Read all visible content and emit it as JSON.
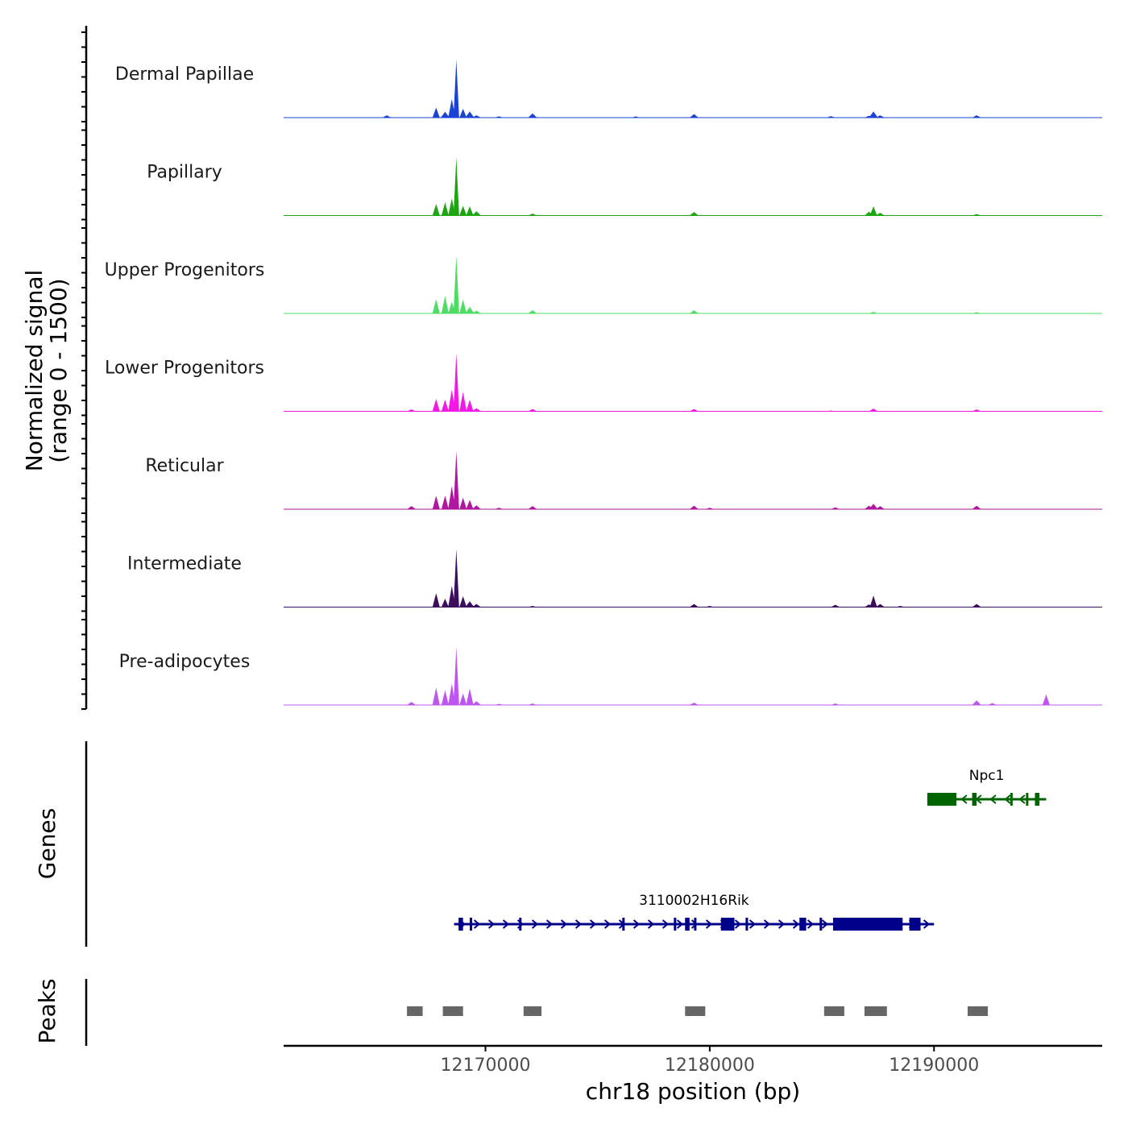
{
  "chart_data": {
    "type": "area",
    "title": "",
    "ylabel": "Normalized signal",
    "ylabel_range": "(range 0 - 1500)",
    "ylim": [
      0,
      1500
    ],
    "xlabel": "chr18 position (bp)",
    "xlim": [
      12161000,
      12197500
    ],
    "xticks": [
      12170000,
      12180000,
      12190000
    ],
    "xtick_labels": [
      "12170000",
      "12180000",
      "12190000"
    ],
    "tracks": [
      {
        "name": "Dermal Papillae",
        "color": "#1A43D6",
        "peaks": [
          [
            12165600,
            60
          ],
          [
            12167800,
            260
          ],
          [
            12168200,
            150
          ],
          [
            12168500,
            480
          ],
          [
            12168700,
            1500
          ],
          [
            12169000,
            230
          ],
          [
            12169300,
            160
          ],
          [
            12169600,
            60
          ],
          [
            12170600,
            35
          ],
          [
            12172100,
            110
          ],
          [
            12176700,
            30
          ],
          [
            12179300,
            90
          ],
          [
            12185400,
            40
          ],
          [
            12187100,
            50
          ],
          [
            12187300,
            160
          ],
          [
            12187600,
            60
          ],
          [
            12191900,
            60
          ]
        ]
      },
      {
        "name": "Papillary",
        "color": "#1FA512",
        "peaks": [
          [
            12167800,
            300
          ],
          [
            12168200,
            340
          ],
          [
            12168500,
            440
          ],
          [
            12168700,
            1500
          ],
          [
            12169000,
            250
          ],
          [
            12169300,
            240
          ],
          [
            12169600,
            110
          ],
          [
            12172100,
            50
          ],
          [
            12179300,
            90
          ],
          [
            12187100,
            100
          ],
          [
            12187300,
            240
          ],
          [
            12187600,
            70
          ],
          [
            12191900,
            40
          ]
        ]
      },
      {
        "name": "Upper Progenitors",
        "color": "#4CDD62",
        "peaks": [
          [
            12167800,
            370
          ],
          [
            12168200,
            450
          ],
          [
            12168500,
            300
          ],
          [
            12168700,
            1500
          ],
          [
            12169000,
            360
          ],
          [
            12169300,
            170
          ],
          [
            12169600,
            70
          ],
          [
            12172100,
            80
          ],
          [
            12179300,
            80
          ],
          [
            12187300,
            40
          ],
          [
            12191900,
            30
          ]
        ]
      },
      {
        "name": "Lower Progenitors",
        "color": "#F318E3",
        "peaks": [
          [
            12166700,
            50
          ],
          [
            12167800,
            320
          ],
          [
            12168200,
            300
          ],
          [
            12168500,
            560
          ],
          [
            12168700,
            1500
          ],
          [
            12169000,
            500
          ],
          [
            12169300,
            300
          ],
          [
            12169600,
            80
          ],
          [
            12172100,
            60
          ],
          [
            12179300,
            60
          ],
          [
            12185400,
            20
          ],
          [
            12187300,
            70
          ],
          [
            12191900,
            50
          ]
        ]
      },
      {
        "name": "Reticular",
        "color": "#B0169F",
        "peaks": [
          [
            12166700,
            80
          ],
          [
            12167800,
            350
          ],
          [
            12168200,
            350
          ],
          [
            12168500,
            600
          ],
          [
            12168700,
            1500
          ],
          [
            12169000,
            300
          ],
          [
            12169300,
            240
          ],
          [
            12169600,
            100
          ],
          [
            12170600,
            40
          ],
          [
            12172100,
            80
          ],
          [
            12179300,
            90
          ],
          [
            12180000,
            40
          ],
          [
            12185600,
            50
          ],
          [
            12187100,
            90
          ],
          [
            12187300,
            140
          ],
          [
            12187600,
            80
          ],
          [
            12191900,
            90
          ]
        ]
      },
      {
        "name": "Intermediate",
        "color": "#3B0F5E",
        "peaks": [
          [
            12167800,
            360
          ],
          [
            12168200,
            220
          ],
          [
            12168500,
            550
          ],
          [
            12168700,
            1500
          ],
          [
            12169000,
            280
          ],
          [
            12169300,
            150
          ],
          [
            12169600,
            80
          ],
          [
            12172100,
            30
          ],
          [
            12179300,
            80
          ],
          [
            12180000,
            30
          ],
          [
            12185600,
            60
          ],
          [
            12187100,
            70
          ],
          [
            12187300,
            300
          ],
          [
            12187600,
            80
          ],
          [
            12188500,
            30
          ],
          [
            12191900,
            80
          ]
        ]
      },
      {
        "name": "Pre-adipocytes",
        "color": "#BF55F0",
        "peaks": [
          [
            12166700,
            80
          ],
          [
            12167800,
            450
          ],
          [
            12168200,
            380
          ],
          [
            12168500,
            550
          ],
          [
            12168700,
            1500
          ],
          [
            12169000,
            300
          ],
          [
            12169300,
            430
          ],
          [
            12169600,
            100
          ],
          [
            12170600,
            30
          ],
          [
            12172100,
            40
          ],
          [
            12179300,
            60
          ],
          [
            12185600,
            40
          ],
          [
            12191900,
            120
          ],
          [
            12192600,
            50
          ],
          [
            12195000,
            270
          ]
        ]
      }
    ],
    "genes": [
      {
        "name": "Npc1",
        "color": "#006400",
        "start": 12189700,
        "end": 12195000,
        "strand": "-",
        "exons": [
          [
            12189700,
            12191000
          ],
          [
            12191700,
            12191900
          ],
          [
            12193400,
            12193500
          ],
          [
            12194100,
            12194200
          ],
          [
            12194500,
            12194700
          ]
        ]
      },
      {
        "name": "3110002H16Rik",
        "color": "#00008B",
        "start": 12168600,
        "end": 12190000,
        "strand": "+",
        "exons": [
          [
            12168800,
            12169000
          ],
          [
            12169300,
            12169400
          ],
          [
            12171500,
            12171600
          ],
          [
            12176100,
            12176200
          ],
          [
            12178400,
            12178500
          ],
          [
            12178900,
            12179100
          ],
          [
            12179300,
            12179400
          ],
          [
            12180500,
            12181100
          ],
          [
            12181600,
            12181700
          ],
          [
            12184000,
            12184300
          ],
          [
            12184900,
            12185000
          ],
          [
            12185500,
            12188600
          ],
          [
            12188900,
            12189400
          ]
        ]
      }
    ],
    "peaks_track": [
      [
        12166500,
        12167200
      ],
      [
        12168100,
        12169000
      ],
      [
        12171700,
        12172500
      ],
      [
        12178900,
        12179800
      ],
      [
        12185100,
        12186000
      ],
      [
        12186900,
        12187900
      ],
      [
        12191500,
        12192400
      ]
    ],
    "track_labels": {
      "genes": "Genes",
      "peaks": "Peaks"
    }
  }
}
